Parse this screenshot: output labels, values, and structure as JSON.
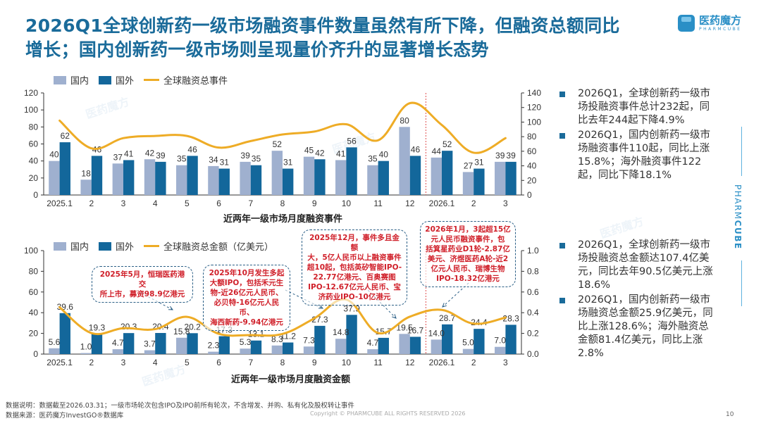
{
  "header": {
    "title_line1": "2026Q1全球创新药一级市场融资事件数量虽然有所下降，但融资总额同比",
    "title_line2": "增长；国内创新药一级市场则呈现量价齐升的显著增长态势",
    "logo_cn": "医药魔方",
    "logo_en": "PHARMCUBE"
  },
  "chart_data": [
    {
      "type": "bar",
      "title": "近两年一级市场月度融资事件",
      "categories": [
        "2025.1",
        "2",
        "3",
        "4",
        "5",
        "6",
        "7",
        "8",
        "9",
        "10",
        "11",
        "12",
        "2026.1",
        "2",
        "3"
      ],
      "series": [
        {
          "name": "国内",
          "axis": "left",
          "values": [
            40,
            18,
            37,
            42,
            35,
            34,
            39,
            52,
            45,
            41,
            35,
            80,
            44,
            27,
            39
          ]
        },
        {
          "name": "国外",
          "axis": "left",
          "values": [
            62,
            46,
            41,
            39,
            46,
            31,
            35,
            31,
            42,
            56,
            40,
            46,
            52,
            31,
            39
          ]
        },
        {
          "name": "全球融资总事件",
          "type": "line",
          "axis": "right",
          "values": [
            102,
            64,
            78,
            81,
            81,
            65,
            74,
            83,
            87,
            97,
            75,
            126,
            96,
            58,
            78
          ]
        }
      ],
      "ylim_left": [
        0,
        120
      ],
      "yticks_left": [
        "0",
        "20",
        "40",
        "60",
        "80",
        "100",
        "120"
      ],
      "ylim_right": [
        0,
        140
      ],
      "yticks_right": [
        "0",
        "20",
        "40",
        "60",
        "80",
        "100",
        "120",
        "140"
      ],
      "legend": "top-left",
      "divider_after_category": "12"
    },
    {
      "type": "bar",
      "title": "近两年一级市场月度融资金额",
      "categories": [
        "2025.1",
        "2",
        "3",
        "4",
        "5",
        "6",
        "7",
        "8",
        "9",
        "10",
        "11",
        "12",
        "2026.1",
        "2",
        "3"
      ],
      "series": [
        {
          "name": "国内",
          "axis": "left",
          "values": [
            5.6,
            1.0,
            4.7,
            3.7,
            15.8,
            2.3,
            5.3,
            8.3,
            7.3,
            14.8,
            4.7,
            19.5,
            14.0,
            5.0,
            7.0
          ]
        },
        {
          "name": "国外",
          "axis": "left",
          "values": [
            39.6,
            19.3,
            20.3,
            20.4,
            20.2,
            17.3,
            13.1,
            11.2,
            27.3,
            37.9,
            15.7,
            16.7,
            28.7,
            24.4,
            28.3
          ]
        },
        {
          "name": "全球融资总金额（亿美元）",
          "type": "line",
          "axis": "left",
          "values": [
            45.2,
            20.3,
            25.0,
            24.1,
            36.0,
            19.6,
            18.4,
            19.5,
            34.6,
            52.7,
            20.4,
            36.2,
            42.7,
            29.4,
            35.3
          ]
        }
      ],
      "ylim_left": [
        0,
        100
      ],
      "yticks_left": [
        "0",
        "20",
        "40",
        "60",
        "80",
        "100"
      ],
      "ylim_right": [
        0,
        1.0
      ],
      "yticks_right": [
        "0.0",
        "0.2",
        "0.4",
        "0.6",
        "0.8",
        "1.0"
      ],
      "legend": "top-left",
      "divider_after_category": "12",
      "annotations": [
        {
          "target": "5",
          "text": "2025年5月，恒瑞医药港交所上市，募资98.9亿港元"
        },
        {
          "target": "9",
          "text": "2025年10月发生多起大额IPO，包括禾元生物-近26亿元人民币、必贝特-16亿元人民币、海西新药-9.94亿港元"
        },
        {
          "target": "12",
          "text": "2025年12月，事件多且金额大，5亿人民币以上融资事件超10起，包括英矽智能IPO-22.77亿港元、百奥赛图IPO-12.67亿元人民币、宝济药业IPO-10亿港元"
        },
        {
          "target": "2026.1",
          "text": "2026年1月，3起超15亿元人民币融资事件，包括箕星药业D1轮-2.87亿美元、济煜医药A轮-近2亿元人民币、瑞博生物IPO-18.32亿港元"
        }
      ]
    }
  ],
  "annotation_lines": {
    "a1": [
      "2025年5月，恒瑞医药港交",
      "所上市，募资98.9亿港元"
    ],
    "a2": [
      "2025年10月发生多起",
      "大额IPO，包括禾元生",
      "物-近26亿元人民币、",
      "必贝特-16亿元人民币、",
      "海西新药-9.94亿港元"
    ],
    "a3": [
      "2025年12月，事件多且金额",
      "大，5亿人民币以上融资事件",
      "超10起，包括英矽智能IPO-",
      "22.77亿港元、百奥赛图",
      "IPO-12.67亿元人民币、宝",
      "济药业IPO-10亿港元"
    ],
    "a4": [
      "2026年1月，3起超15亿",
      "元人民币融资事件，包",
      "括箕星药业D1轮-2.87亿",
      "美元、济煜医药A轮-近2",
      "亿元人民币、瑞博生物",
      "IPO-18.32亿港元"
    ]
  },
  "legend1": {
    "domestic": "国内",
    "foreign": "国外",
    "line": "全球融资总事件"
  },
  "legend2": {
    "domestic": "国内",
    "foreign": "国外",
    "line": "全球融资总金额（亿美元）"
  },
  "colors": {
    "domestic": "#9fb0cf",
    "foreign": "#13679b",
    "line": "#eeac26",
    "title": "#1a6b9a",
    "note": "#d0202a"
  },
  "bullets_top": [
    "2026Q1，全球创新药一级市场投融资事件总计232起，同比去年244起下降4.9%",
    "2026Q1，国内创新药一级市场融资事件110起，同比上涨15.8%；海外融资事件122起，同比下降18.1%"
  ],
  "bullets_bottom": [
    "2026Q1，全球创新药一级市场投融资总金额达107.4亿美元，同比去年90.5亿美元上涨18.6%",
    "2026Q1，国内创新药一级市场融资总金额25.9亿美元，同比上涨128.6%；海外融资总金额81.4亿美元，同比上涨2.8%"
  ],
  "side_label": {
    "light": "PHARM",
    "bold": "CUBE"
  },
  "footer": {
    "note": "数据说明：数据截至2026.03.31；一级市场轮次包含IPO及IPO前所有轮次，不含增发、并购、私有化及股权转让事件",
    "source": "数据来源：医药魔方InvestGO®数据库",
    "copyright": "Copyright © PHARMCUBE ALL RIGHTS RESERVED 2026",
    "page": "10"
  }
}
